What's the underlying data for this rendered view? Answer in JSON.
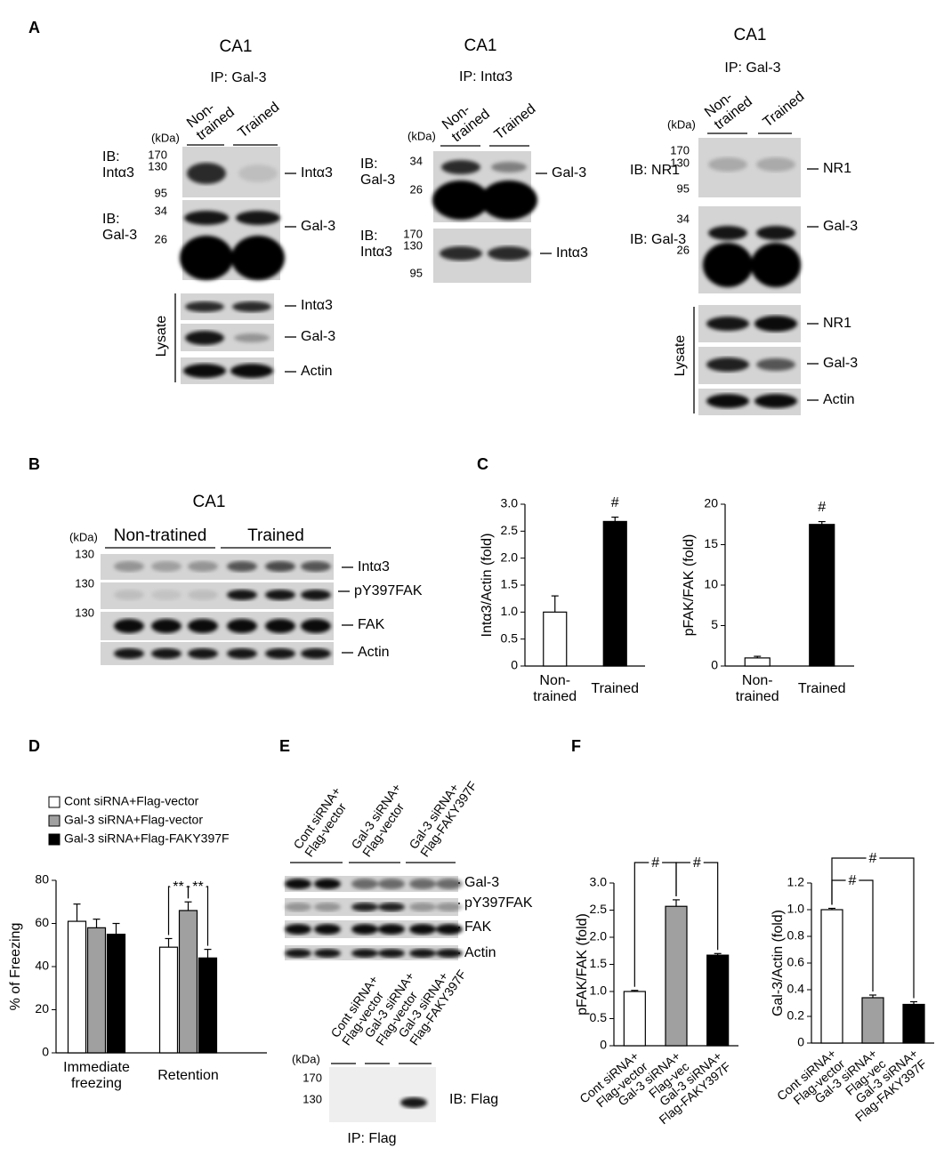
{
  "panel_labels": [
    "A",
    "B",
    "C",
    "D",
    "E",
    "F"
  ],
  "panel_a": [
    {
      "title": "CA1",
      "subtitle": "IP: Gal-3",
      "lanes": [
        "Non-\ntrained",
        "Trained"
      ],
      "kda": "(kDa)",
      "markers": [
        "170",
        "130",
        "95",
        "34",
        "26"
      ],
      "ib": [
        "IB:\nIntα3",
        "IB:\nGal-3"
      ],
      "bands": [
        "Intα3",
        "Gal-3",
        "Intα3",
        "Gal-3",
        "Actin"
      ],
      "lysate": "Lysate"
    },
    {
      "title": "CA1",
      "subtitle": "IP: Intα3",
      "lanes": [
        "Non-\ntrained",
        "Trained"
      ],
      "kda": "(kDa)",
      "markers": [
        "34",
        "26",
        "170",
        "130",
        "95"
      ],
      "ib": [
        "IB:\nGal-3",
        "IB:\nIntα3"
      ],
      "bands": [
        "Gal-3",
        "Intα3"
      ]
    },
    {
      "title": "CA1",
      "subtitle": "IP: Gal-3",
      "lanes": [
        "Non-\ntrained",
        "Trained"
      ],
      "kda": "(kDa)",
      "markers": [
        "170",
        "130",
        "95",
        "34",
        "26"
      ],
      "ib": [
        "IB: NR1",
        "IB: Gal-3"
      ],
      "bands": [
        "NR1",
        "Gal-3",
        "NR1",
        "Gal-3",
        "Actin"
      ],
      "lysate": "Lysate"
    }
  ],
  "panel_b": {
    "title": "CA1",
    "groups": [
      "Non-tratined",
      "Trained"
    ],
    "kda": "(kDa)",
    "markers": [
      "130",
      "130",
      "130"
    ],
    "bands": [
      "Intα3",
      "pY397FAK",
      "FAK",
      "Actin"
    ]
  },
  "panel_e": {
    "lanes": [
      "Cont siRNA+\nFlag-vector",
      "Gal-3 siRNA+\nFlag-vector",
      "Gal-3 siRNA+\nFlag-FAKY397F"
    ],
    "bands": [
      "Gal-3",
      "pY397FAK",
      "FAK",
      "Actin"
    ],
    "ip_lanes": [
      "Cont siRNA+\nFlag-vector",
      "Gal-3 siRNA+\nFlag-vector",
      "Gal-3 siRNA+\nFlag-FAKY397F"
    ],
    "kda": "(kDa)",
    "markers": [
      "170",
      "130"
    ],
    "ib": "IB: Flag",
    "ip": "IP: Flag"
  },
  "chart_data": [
    {
      "type": "bar",
      "ylabel": "Intα3/Actin (fold)",
      "categories": [
        "Non-\ntrained",
        "Trained"
      ],
      "values": [
        1.0,
        2.68
      ],
      "errors": [
        0.3,
        0.08
      ],
      "colors": [
        "#ffffff",
        "#000000"
      ],
      "ylim": [
        0,
        3
      ],
      "yticks": [
        0,
        0.5,
        {
          "value": 1,
          "label": "1.0"
        },
        1.5,
        {
          "value": 2,
          "label": "2.0"
        },
        2.5,
        {
          "value": 3,
          "label": "3.0"
        }
      ],
      "annotations": [
        "#"
      ]
    },
    {
      "type": "bar",
      "ylabel": "pFAK/FAK (fold)",
      "categories": [
        "Non-\ntrained",
        "Trained"
      ],
      "values": [
        1.0,
        17.5
      ],
      "errors": [
        0.2,
        0.35
      ],
      "colors": [
        "#ffffff",
        "#000000"
      ],
      "ylim": [
        0,
        20
      ],
      "yticks": [
        0,
        5,
        10,
        15,
        20
      ],
      "annotations": [
        "#"
      ]
    },
    {
      "type": "bar",
      "ylabel": "% of Freezing",
      "categories": [
        "Immediate\nfreezing",
        "Retention"
      ],
      "series": [
        {
          "name": "Cont siRNA+Flag-vector",
          "color": "#ffffff",
          "values": [
            61,
            49
          ],
          "errors": [
            8,
            4
          ]
        },
        {
          "name": "Gal-3 siRNA+Flag-vector",
          "color": "#a0a0a0",
          "values": [
            58,
            66
          ],
          "errors": [
            4,
            4
          ]
        },
        {
          "name": "Gal-3 siRNA+Flag-FAKY397F",
          "color": "#000000",
          "values": [
            55,
            44
          ],
          "errors": [
            5,
            4
          ]
        }
      ],
      "ylim": [
        0,
        80
      ],
      "yticks": [
        0,
        20,
        40,
        60,
        80
      ],
      "legend": "top-left",
      "annotations": [
        "**",
        "**"
      ]
    },
    {
      "type": "bar",
      "ylabel": "pFAK/FAK (fold)",
      "categories": [
        "Cont siRNA+\nFlag-vector",
        "Gal-3 siRNA+\nFlag-vec",
        "Gal-3 siRNA+\nFlag-FAKY397F"
      ],
      "values": [
        1.0,
        2.57,
        1.67
      ],
      "errors": [
        0.02,
        0.12,
        0.03
      ],
      "colors": [
        "#ffffff",
        "#a0a0a0",
        "#000000"
      ],
      "ylim": [
        0,
        3
      ],
      "yticks": [
        0,
        0.5,
        {
          "value": 1,
          "label": "1.0"
        },
        1.5,
        {
          "value": 2,
          "label": "2.0"
        },
        2.5,
        {
          "value": 3,
          "label": "3.0"
        }
      ],
      "annotations": [
        "#",
        "#"
      ]
    },
    {
      "type": "bar",
      "ylabel": "Gal-3/Actin (fold)",
      "categories": [
        "Cont siRNA+\nFlag-vector",
        "Gal-3 siRNA+\nFlag-vec",
        "Gal-3 siRNA+\nFlag-FAKY397F"
      ],
      "values": [
        1.0,
        0.34,
        0.29
      ],
      "errors": [
        0.01,
        0.02,
        0.02
      ],
      "colors": [
        "#ffffff",
        "#a0a0a0",
        "#000000"
      ],
      "ylim": [
        0,
        1.2
      ],
      "yticks": [
        0,
        0.2,
        0.4,
        0.6,
        0.8,
        {
          "value": 1,
          "label": "1.0"
        },
        1.2
      ],
      "annotations": [
        "#",
        "#"
      ]
    }
  ]
}
